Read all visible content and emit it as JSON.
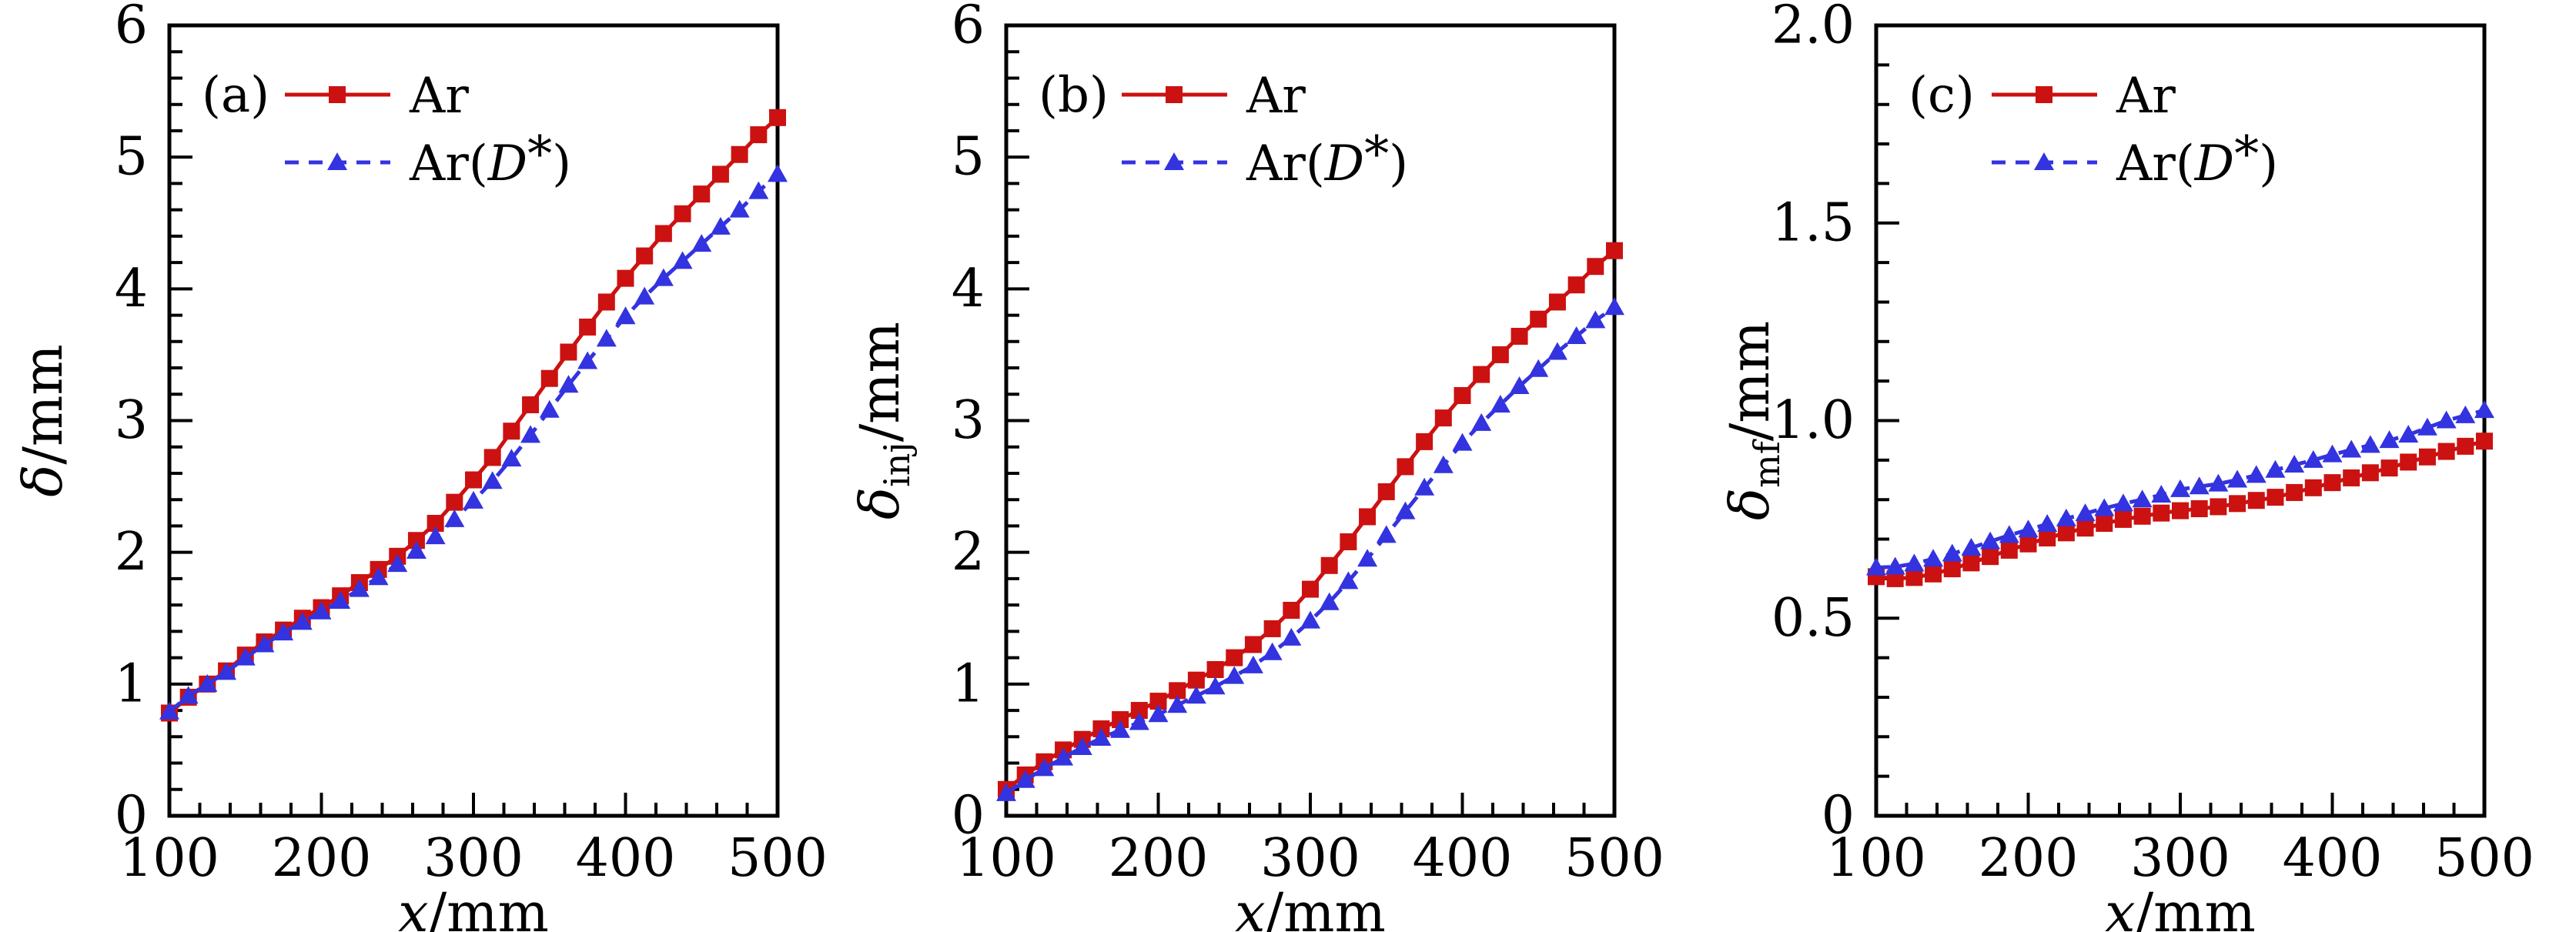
{
  "style": {
    "background": "#ffffff",
    "axis_color": "#000000",
    "text_color": "#000000",
    "ar_color": "#cc1111",
    "ar_d_color": "#3333e0"
  },
  "chart_data": [
    {
      "type": "line",
      "panel_tag": "(a)",
      "x_axis": {
        "label_var": "x",
        "label_unit": "/mm",
        "min": 100,
        "max": 500,
        "major_ticks": [
          100,
          200,
          300,
          400,
          500
        ],
        "minor_step": 20
      },
      "y_axis": {
        "label_var": "δ",
        "label_sub": "",
        "label_unit": "/mm",
        "min": 0,
        "max": 6,
        "major_ticks": [
          0,
          1,
          2,
          3,
          4,
          5,
          6
        ],
        "tick_labels": [
          "0",
          "1",
          "2",
          "3",
          "4",
          "5",
          "6"
        ],
        "minor_step": 0.2
      },
      "grid": false,
      "legend_position": "top-left",
      "x": [
        100,
        112.5,
        125,
        137.5,
        150,
        162.5,
        175,
        187.5,
        200,
        212.5,
        225,
        237.5,
        250,
        262.5,
        275,
        287.5,
        300,
        312.5,
        325,
        337.5,
        350,
        362.5,
        375,
        387.5,
        400,
        412.5,
        425,
        437.5,
        450,
        462.5,
        475,
        487.5,
        500
      ],
      "series": [
        {
          "name": "Ar",
          "color_key": "ar_color",
          "marker": "square",
          "line": "solid",
          "values": [
            0.78,
            0.9,
            1.0,
            1.1,
            1.22,
            1.32,
            1.41,
            1.5,
            1.58,
            1.67,
            1.77,
            1.87,
            1.97,
            2.09,
            2.22,
            2.38,
            2.55,
            2.72,
            2.92,
            3.12,
            3.32,
            3.52,
            3.71,
            3.9,
            4.08,
            4.25,
            4.42,
            4.57,
            4.72,
            4.87,
            5.02,
            5.17,
            5.3
          ]
        },
        {
          "name": "Ar(D*)",
          "color_key": "ar_d_color",
          "marker": "triangle",
          "line": "dashed",
          "values": [
            0.79,
            0.91,
            1.0,
            1.09,
            1.2,
            1.3,
            1.39,
            1.47,
            1.55,
            1.63,
            1.72,
            1.81,
            1.91,
            2.01,
            2.12,
            2.25,
            2.39,
            2.54,
            2.71,
            2.89,
            3.08,
            3.27,
            3.45,
            3.62,
            3.79,
            3.94,
            4.08,
            4.21,
            4.34,
            4.47,
            4.6,
            4.74,
            4.87
          ]
        }
      ]
    },
    {
      "type": "line",
      "panel_tag": "(b)",
      "x_axis": {
        "label_var": "x",
        "label_unit": "/mm",
        "min": 100,
        "max": 500,
        "major_ticks": [
          100,
          200,
          300,
          400,
          500
        ],
        "minor_step": 20
      },
      "y_axis": {
        "label_var": "δ",
        "label_sub": "inj",
        "label_unit": "/mm",
        "min": 0,
        "max": 6,
        "major_ticks": [
          0,
          1,
          2,
          3,
          4,
          5,
          6
        ],
        "tick_labels": [
          "0",
          "1",
          "2",
          "3",
          "4",
          "5",
          "6"
        ],
        "minor_step": 0.2
      },
      "grid": false,
      "legend_position": "top-left",
      "x": [
        100,
        112.5,
        125,
        137.5,
        150,
        162.5,
        175,
        187.5,
        200,
        212.5,
        225,
        237.5,
        250,
        262.5,
        275,
        287.5,
        300,
        312.5,
        325,
        337.5,
        350,
        362.5,
        375,
        387.5,
        400,
        412.5,
        425,
        437.5,
        450,
        462.5,
        475,
        487.5,
        500
      ],
      "series": [
        {
          "name": "Ar",
          "color_key": "ar_color",
          "marker": "square",
          "line": "solid",
          "values": [
            0.2,
            0.31,
            0.41,
            0.5,
            0.58,
            0.66,
            0.73,
            0.8,
            0.87,
            0.95,
            1.03,
            1.11,
            1.2,
            1.3,
            1.42,
            1.56,
            1.72,
            1.9,
            2.08,
            2.27,
            2.46,
            2.65,
            2.84,
            3.02,
            3.19,
            3.35,
            3.5,
            3.64,
            3.77,
            3.9,
            4.03,
            4.17,
            4.29
          ]
        },
        {
          "name": "Ar(D*)",
          "color_key": "ar_d_color",
          "marker": "triangle",
          "line": "dashed",
          "values": [
            0.17,
            0.27,
            0.36,
            0.44,
            0.52,
            0.59,
            0.65,
            0.71,
            0.77,
            0.84,
            0.91,
            0.98,
            1.06,
            1.14,
            1.24,
            1.35,
            1.48,
            1.62,
            1.78,
            1.95,
            2.13,
            2.31,
            2.49,
            2.66,
            2.83,
            2.98,
            3.12,
            3.26,
            3.39,
            3.52,
            3.64,
            3.76,
            3.86
          ]
        }
      ]
    },
    {
      "type": "line",
      "panel_tag": "(c)",
      "x_axis": {
        "label_var": "x",
        "label_unit": "/mm",
        "min": 100,
        "max": 500,
        "major_ticks": [
          100,
          200,
          300,
          400,
          500
        ],
        "minor_step": 20
      },
      "y_axis": {
        "label_var": "δ",
        "label_sub": "mf",
        "label_unit": "/mm",
        "min": 0,
        "max": 2.0,
        "major_ticks": [
          0,
          0.5,
          1.0,
          1.5,
          2.0
        ],
        "tick_labels": [
          "0",
          "0.5",
          "1.0",
          "1.5",
          "2.0"
        ],
        "minor_step": 0.1
      },
      "grid": false,
      "legend_position": "top-left",
      "x": [
        100,
        112.5,
        125,
        137.5,
        150,
        162.5,
        175,
        187.5,
        200,
        212.5,
        225,
        237.5,
        250,
        262.5,
        275,
        287.5,
        300,
        312.5,
        325,
        337.5,
        350,
        362.5,
        375,
        387.5,
        400,
        412.5,
        425,
        437.5,
        450,
        462.5,
        475,
        487.5,
        500
      ],
      "series": [
        {
          "name": "Ar",
          "color_key": "ar_color",
          "marker": "square",
          "line": "solid",
          "values": [
            0.605,
            0.6,
            0.603,
            0.612,
            0.625,
            0.64,
            0.656,
            0.672,
            0.688,
            0.703,
            0.716,
            0.728,
            0.74,
            0.75,
            0.758,
            0.766,
            0.772,
            0.777,
            0.782,
            0.79,
            0.798,
            0.806,
            0.818,
            0.83,
            0.843,
            0.855,
            0.868,
            0.88,
            0.895,
            0.908,
            0.922,
            0.935,
            0.948
          ]
        },
        {
          "name": "Ar(D*)",
          "color_key": "ar_d_color",
          "marker": "triangle",
          "line": "dashed",
          "values": [
            0.628,
            0.63,
            0.638,
            0.65,
            0.663,
            0.678,
            0.694,
            0.71,
            0.724,
            0.738,
            0.752,
            0.765,
            0.778,
            0.79,
            0.8,
            0.812,
            0.826,
            0.833,
            0.84,
            0.85,
            0.862,
            0.875,
            0.888,
            0.9,
            0.914,
            0.926,
            0.938,
            0.95,
            0.964,
            0.982,
            1.0,
            1.013,
            1.026
          ]
        }
      ]
    }
  ]
}
